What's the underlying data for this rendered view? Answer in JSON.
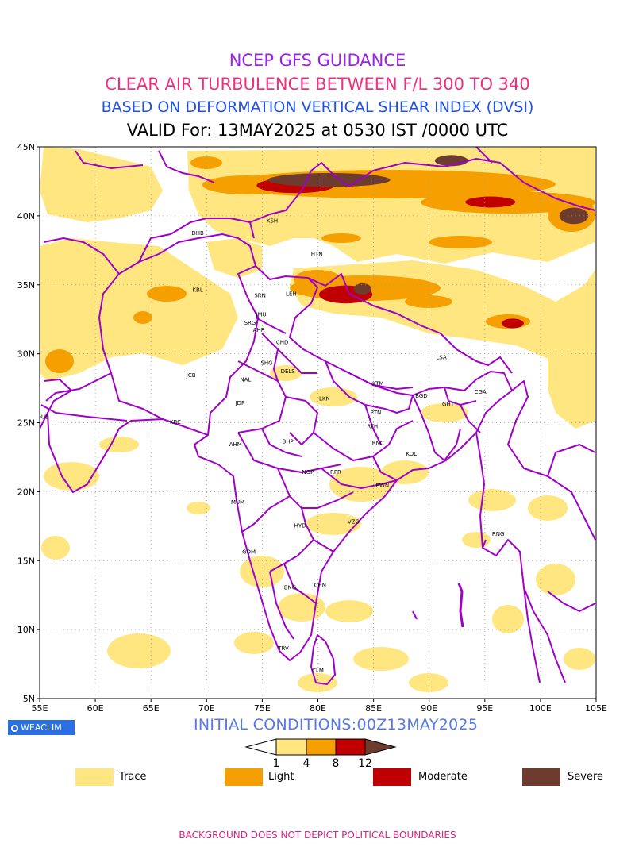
{
  "title": {
    "line1": "NCEP GFS GUIDANCE",
    "line2": "CLEAR AIR TURBULENCE BETWEEN F/L 300 TO 340",
    "line3": "BASED ON DEFORMATION VERTICAL SHEAR INDEX (DVSI)",
    "line4": "VALID For: 13MAY2025 at 0530 IST /0000 UTC"
  },
  "map": {
    "lon_range": [
      55,
      105
    ],
    "lat_range": [
      5,
      45
    ],
    "lon_ticks": [
      "55E",
      "60E",
      "65E",
      "70E",
      "75E",
      "80E",
      "85E",
      "90E",
      "95E",
      "100E",
      "105E"
    ],
    "lat_ticks": [
      "5N",
      "10N",
      "15N",
      "20N",
      "25N",
      "30N",
      "35N",
      "40N",
      "45N"
    ],
    "grid": "dotted",
    "stations": [
      {
        "code": "KSH",
        "lon": 75.9,
        "lat": 39.5
      },
      {
        "code": "DHB",
        "lon": 69.2,
        "lat": 38.6
      },
      {
        "code": "HTN",
        "lon": 79.9,
        "lat": 37.1
      },
      {
        "code": "KBL",
        "lon": 69.2,
        "lat": 34.5
      },
      {
        "code": "SRN",
        "lon": 74.8,
        "lat": 34.1
      },
      {
        "code": "LEH",
        "lon": 77.6,
        "lat": 34.2
      },
      {
        "code": "JMU",
        "lon": 74.9,
        "lat": 32.7
      },
      {
        "code": "SRG",
        "lon": 73.9,
        "lat": 32.1
      },
      {
        "code": "AHR",
        "lon": 74.7,
        "lat": 31.6
      },
      {
        "code": "CHD",
        "lon": 76.8,
        "lat": 30.7
      },
      {
        "code": "LSA",
        "lon": 91.1,
        "lat": 29.6
      },
      {
        "code": "SHG",
        "lon": 75.4,
        "lat": 29.2
      },
      {
        "code": "DELS",
        "lon": 77.3,
        "lat": 28.6
      },
      {
        "code": "JCB",
        "lon": 68.6,
        "lat": 28.3
      },
      {
        "code": "NAL",
        "lon": 73.5,
        "lat": 28.0
      },
      {
        "code": "KTM",
        "lon": 85.4,
        "lat": 27.7
      },
      {
        "code": "CGA",
        "lon": 94.6,
        "lat": 27.1
      },
      {
        "code": "BGD",
        "lon": 89.3,
        "lat": 26.8
      },
      {
        "code": "GHT",
        "lon": 91.7,
        "lat": 26.2
      },
      {
        "code": "LKN",
        "lon": 80.6,
        "lat": 26.6
      },
      {
        "code": "JDP",
        "lon": 73.0,
        "lat": 26.3
      },
      {
        "code": "DUB",
        "lon": 55.3,
        "lat": 25.3
      },
      {
        "code": "PTN",
        "lon": 85.2,
        "lat": 25.6
      },
      {
        "code": "KRC",
        "lon": 67.2,
        "lat": 24.9
      },
      {
        "code": "RTH",
        "lon": 84.9,
        "lat": 24.6
      },
      {
        "code": "AHM",
        "lon": 72.6,
        "lat": 23.3
      },
      {
        "code": "BHP",
        "lon": 77.3,
        "lat": 23.5
      },
      {
        "code": "RNC",
        "lon": 85.4,
        "lat": 23.4
      },
      {
        "code": "KOL",
        "lon": 88.4,
        "lat": 22.6
      },
      {
        "code": "NGP",
        "lon": 79.1,
        "lat": 21.3
      },
      {
        "code": "RPR",
        "lon": 81.6,
        "lat": 21.3
      },
      {
        "code": "BWN",
        "lon": 85.8,
        "lat": 20.3
      },
      {
        "code": "MUM",
        "lon": 72.8,
        "lat": 19.1
      },
      {
        "code": "HYD",
        "lon": 78.4,
        "lat": 17.4
      },
      {
        "code": "VZG",
        "lon": 83.2,
        "lat": 17.7
      },
      {
        "code": "RNG",
        "lon": 96.2,
        "lat": 16.8
      },
      {
        "code": "GOM",
        "lon": 73.8,
        "lat": 15.5
      },
      {
        "code": "BNG",
        "lon": 77.5,
        "lat": 12.9
      },
      {
        "code": "CHN",
        "lon": 80.2,
        "lat": 13.1
      },
      {
        "code": "TRV",
        "lon": 76.9,
        "lat": 8.5
      },
      {
        "code": "CLM",
        "lon": 80.0,
        "lat": 6.9
      }
    ],
    "severe_zones": [
      {
        "lon": 81.0,
        "lat": 42.6,
        "w": 11.0,
        "h": 1.0
      },
      {
        "lon": 92.0,
        "lat": 44.0,
        "w": 3.0,
        "h": 0.8
      },
      {
        "lon": 103.0,
        "lat": 40.0,
        "w": 2.6,
        "h": 1.2
      },
      {
        "lon": 84.0,
        "lat": 34.7,
        "w": 1.6,
        "h": 0.8
      }
    ],
    "moderate_zones": [
      {
        "lon": 78.0,
        "lat": 42.2,
        "w": 7.0,
        "h": 1.1
      },
      {
        "lon": 82.5,
        "lat": 34.3,
        "w": 4.8,
        "h": 1.3
      },
      {
        "lon": 97.5,
        "lat": 32.2,
        "w": 2.0,
        "h": 0.7
      },
      {
        "lon": 95.5,
        "lat": 41.0,
        "w": 4.5,
        "h": 0.8
      }
    ]
  },
  "branding": {
    "logo_text": "WEACLIM",
    "initial_conditions": "INITIAL CONDITIONS:00Z13MAY2025"
  },
  "colorbar": {
    "thresholds": [
      "1",
      "4",
      "8",
      "12"
    ],
    "colors": [
      "#ffffff",
      "#ffe680",
      "#f5a000",
      "#c00000",
      "#6e3b2f"
    ]
  },
  "legend": [
    {
      "label": "Trace",
      "color": "#ffe680"
    },
    {
      "label": "Light",
      "color": "#f5a000"
    },
    {
      "label": "Moderate",
      "color": "#c00000"
    },
    {
      "label": "Severe",
      "color": "#6e3b2f"
    }
  ],
  "footer": "BACKGROUND DOES NOT DEPICT POLITICAL BOUNDARIES"
}
